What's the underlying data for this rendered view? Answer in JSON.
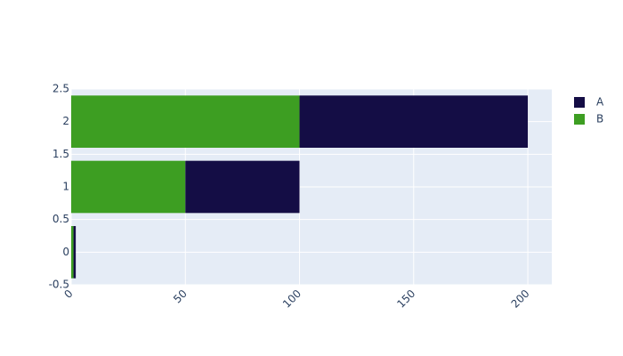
{
  "chart_data": {
    "type": "bar",
    "orientation": "h",
    "barmode": "stack",
    "y": [
      0,
      1,
      2
    ],
    "series": [
      {
        "name": "B",
        "color": "#3d9e22",
        "values": [
          1,
          50,
          100
        ]
      },
      {
        "name": "A",
        "color": "#140d45",
        "values": [
          1,
          50,
          100
        ]
      }
    ],
    "legend_traceorder": "reversed",
    "xlim": [
      0,
      210.5
    ],
    "xticks": [
      0,
      50,
      100,
      150,
      200
    ],
    "ylim": [
      -0.5,
      2.5
    ],
    "yticks": [
      -0.5,
      0,
      0.5,
      1,
      1.5,
      2,
      2.5
    ],
    "grid": true
  }
}
